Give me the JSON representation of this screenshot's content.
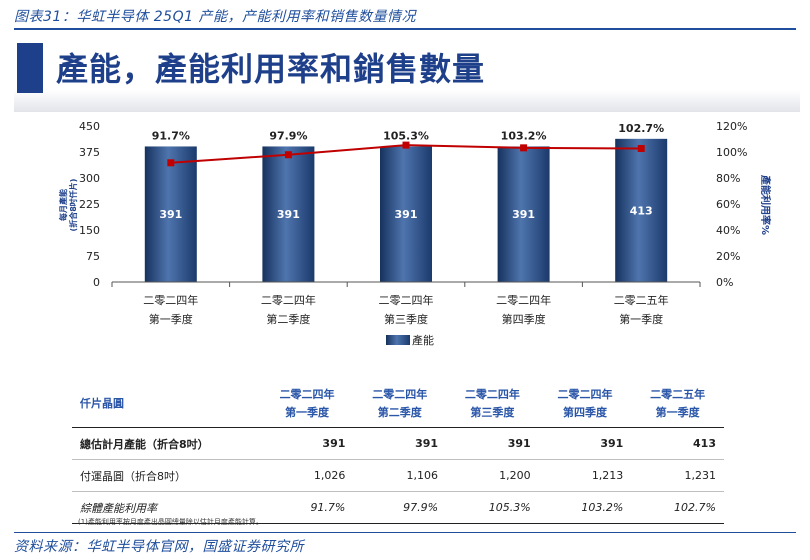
{
  "caption": "图表31：华虹半导体 25Q1 产能，产能利用率和销售数量情况",
  "hero_title": "產能，產能利用率和銷售數量",
  "colors": {
    "bar": "#2c4f86",
    "line": "#c00000",
    "accent": "#1e3f8a"
  },
  "chart_data": {
    "type": "bar",
    "categories": [
      [
        "二零二四年",
        "第一季度"
      ],
      [
        "二零二四年",
        "第二季度"
      ],
      [
        "二零二四年",
        "第三季度"
      ],
      [
        "二零二四年",
        "第四季度"
      ],
      [
        "二零二五年",
        "第一季度"
      ]
    ],
    "series": [
      {
        "name": "產能",
        "type": "bar",
        "axis": "left",
        "values": [
          391,
          391,
          391,
          391,
          413
        ],
        "value_labels": [
          "391",
          "391",
          "391",
          "391",
          "413"
        ]
      },
      {
        "name": "",
        "type": "line",
        "axis": "right",
        "values": [
          91.7,
          97.9,
          105.3,
          103.2,
          102.7
        ],
        "value_labels": [
          "91.7%",
          "97.9%",
          "105.3%",
          "103.2%",
          "102.7%"
        ]
      }
    ],
    "ylabel": "每月產能\n(折合8吋仟片)",
    "y2label": "產能利用率%",
    "ylim": [
      0,
      450
    ],
    "y2lim": [
      0,
      120
    ],
    "yticks": [
      "450",
      "375",
      "300",
      "225",
      "150",
      "75",
      "0"
    ],
    "y2ticks": [
      "120%",
      "100%",
      "80%",
      "60%",
      "40%",
      "20%",
      "0%"
    ],
    "legend": "bottom-center",
    "grid": false
  },
  "table": {
    "header": {
      "label": "仟片晶圓",
      "columns": [
        [
          "二零二四年",
          "第一季度"
        ],
        [
          "二零二四年",
          "第二季度"
        ],
        [
          "二零二四年",
          "第三季度"
        ],
        [
          "二零二四年",
          "第四季度"
        ],
        [
          "二零二五年",
          "第一季度"
        ]
      ]
    },
    "rows": [
      {
        "label": "總估計月產能（折合8吋）",
        "values": [
          "391",
          "391",
          "391",
          "391",
          "413"
        ]
      },
      {
        "label": "付運晶圓（折合8吋）",
        "values": [
          "1,026",
          "1,106",
          "1,200",
          "1,213",
          "1,231"
        ]
      },
      {
        "label": "綜體產能利用率",
        "values": [
          "91.7%",
          "97.9%",
          "105.3%",
          "103.2%",
          "102.7%"
        ]
      }
    ]
  },
  "footnote": "(1)產能利用率按月度產出晶圓總量除以估計月度產能計算。",
  "source": "资料来源：华虹半导体官网，国盛证券研究所"
}
